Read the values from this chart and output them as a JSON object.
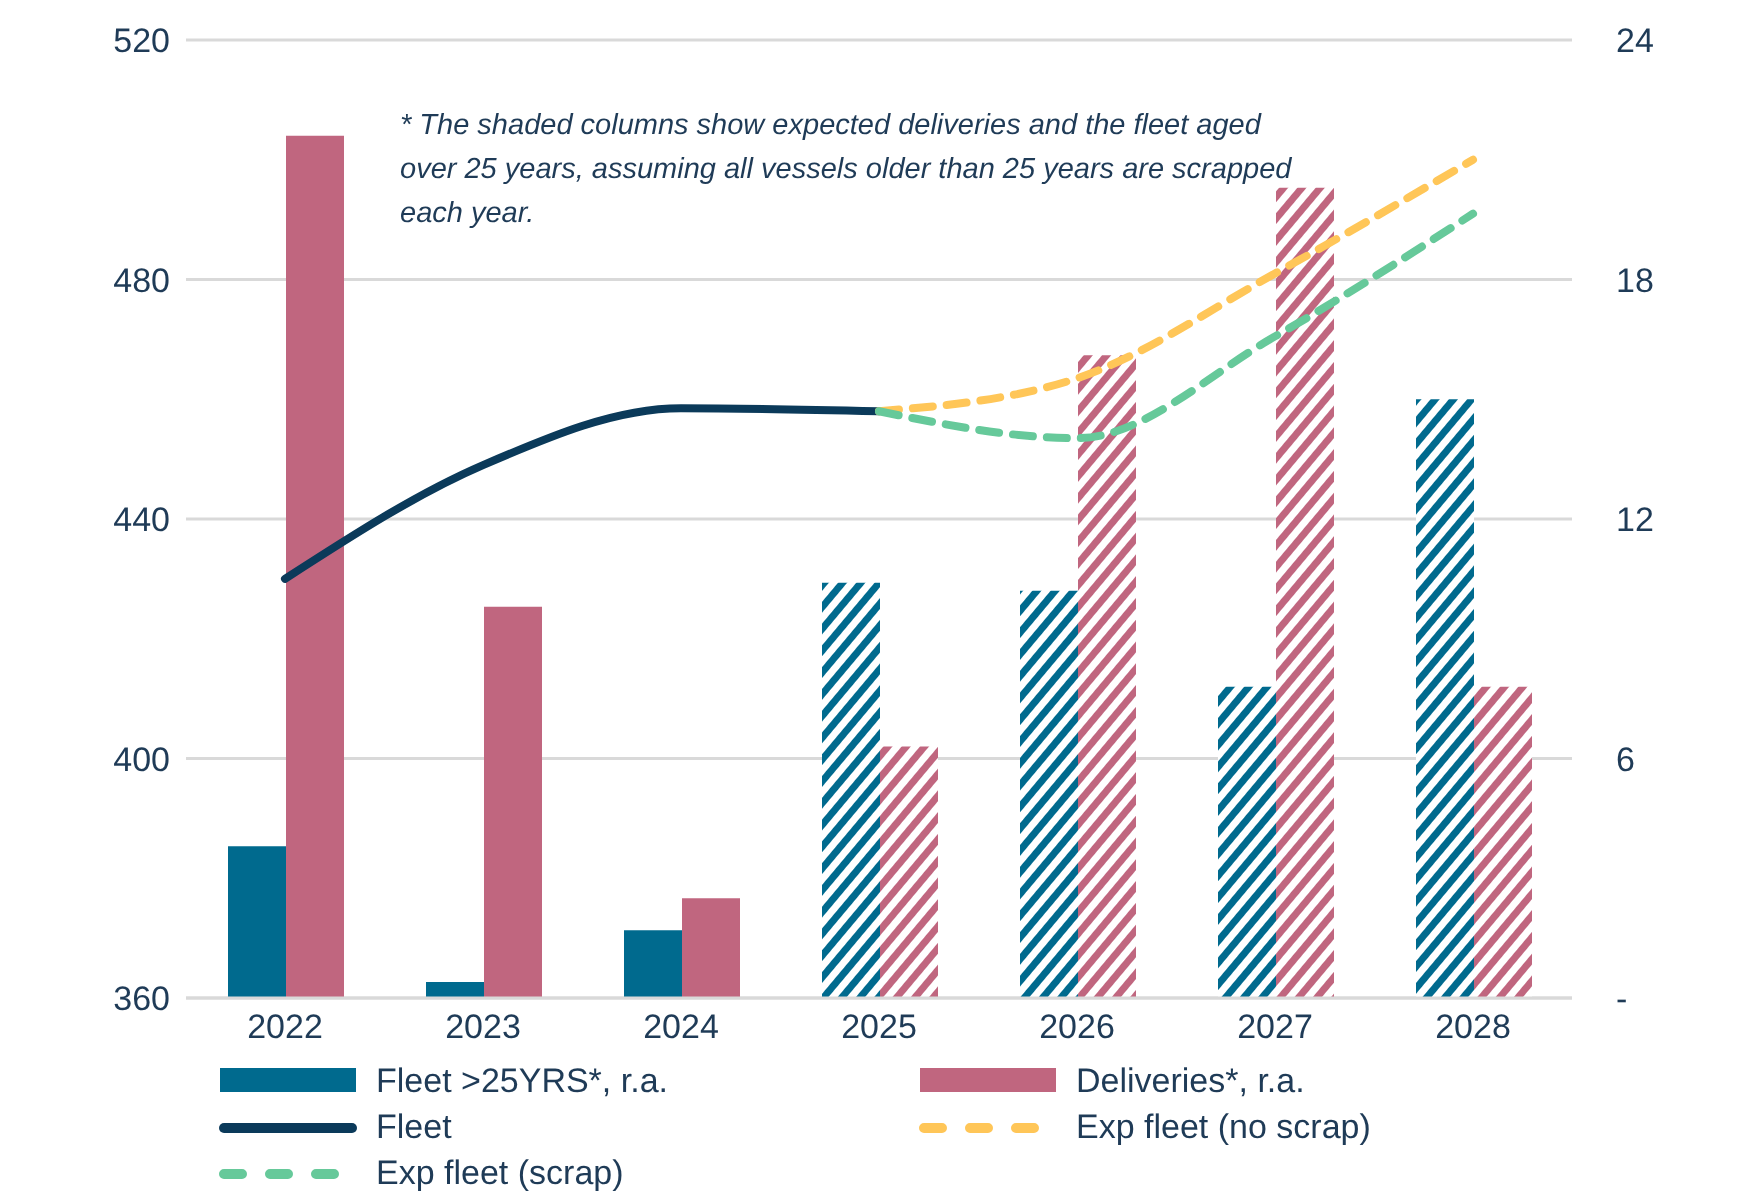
{
  "chart_data": {
    "type": "bar",
    "categories": [
      "2022",
      "2023",
      "2024",
      "2025",
      "2026",
      "2027",
      "2028"
    ],
    "series": [
      {
        "name": "Fleet >25YRS*, r.a.",
        "axis": "y2",
        "color": "#006a8e",
        "values": [
          3.8,
          0.4,
          1.7,
          10.4,
          10.2,
          7.8,
          15.0
        ]
      },
      {
        "name": "Deliveries*, r.a.",
        "axis": "y2",
        "color": "#c0667f",
        "values": [
          21.6,
          9.8,
          2.5,
          6.3,
          16.1,
          20.3,
          7.8
        ]
      },
      {
        "name": "Fleet",
        "type": "line",
        "color": "#0b3a5a",
        "line_style": "solid",
        "values": [
          430,
          449,
          458.5,
          458,
          null,
          null,
          null
        ]
      },
      {
        "name": "Exp fleet (no scrap)",
        "type": "line",
        "color": "#ffc658",
        "line_style": "dashed",
        "values": [
          null,
          null,
          null,
          458,
          463.5,
          481,
          500
        ]
      },
      {
        "name": "Exp fleet (scrap)",
        "type": "line",
        "color": "#66c99a",
        "line_style": "dashed",
        "values": [
          null,
          null,
          null,
          458,
          453.5,
          470.5,
          491
        ]
      }
    ],
    "ylim": [
      360,
      520
    ],
    "yticks": [
      360,
      400,
      440,
      480,
      520
    ],
    "y2lim": [
      0,
      24
    ],
    "y2ticks": [
      {
        "value": 0,
        "label": "-"
      },
      6,
      12,
      18,
      24
    ],
    "grid": "y",
    "legend": "bottom",
    "marker": "none",
    "annotations": [
      "* The shaded columns show expected deliveries and the fleet aged over 25 years, assuming all vessels older than 25 years are scrapped each year."
    ]
  }
}
